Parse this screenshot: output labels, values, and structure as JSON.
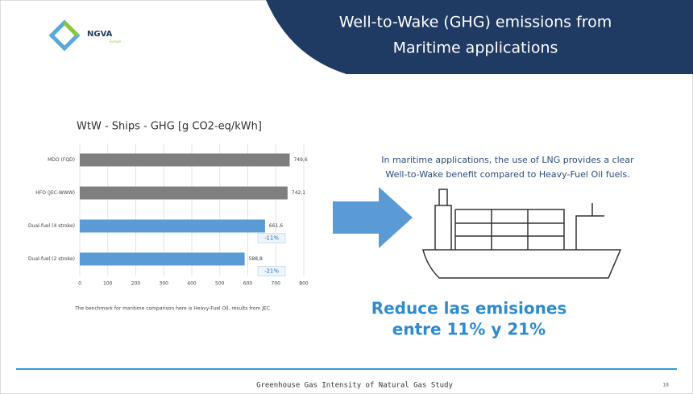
{
  "slide": {
    "title_lines": [
      "Well-to-Wake (GHG) emissions from",
      "Maritime applications"
    ],
    "logo": "NGVA",
    "logo_sub": "Europe",
    "description_lines": [
      "In maritime applications, the use of LNG provides a clear",
      "Well-to-Wake benefit compared to Heavy-Fuel Oil fuels."
    ],
    "highlight_lines": [
      "Reduce las emisiones",
      "entre 11% y 21%"
    ],
    "footer": "Greenhouse Gas Intensity of Natural Gas Study",
    "page": "18"
  },
  "chart_data": {
    "type": "bar",
    "orientation": "horizontal",
    "title": "WtW - Ships - GHG [g CO2-eq/kWh]",
    "categories": [
      "MDO (FQD)",
      "HFO (JEC-WWW)",
      "Dual-fuel (4 stroke)",
      "Dual-fuel (2 stroke)"
    ],
    "values": [
      749.6,
      742.1,
      661.6,
      588.8
    ],
    "value_labels": [
      "749,6",
      "742,1",
      "661,6",
      "588,8"
    ],
    "colors": [
      "#7f7f7f",
      "#7f7f7f",
      "#5b9bd5",
      "#5b9bd5"
    ],
    "annotations": [
      {
        "category": 2,
        "text": "-11%"
      },
      {
        "category": 3,
        "text": "-21%"
      }
    ],
    "xlim": [
      0,
      800
    ],
    "xticks": [
      0,
      100,
      200,
      300,
      400,
      500,
      600,
      700,
      800
    ],
    "grid": true,
    "note": "The benchmark for maritime comparison here is Heavy-Fuel Oil, results from JEC."
  }
}
